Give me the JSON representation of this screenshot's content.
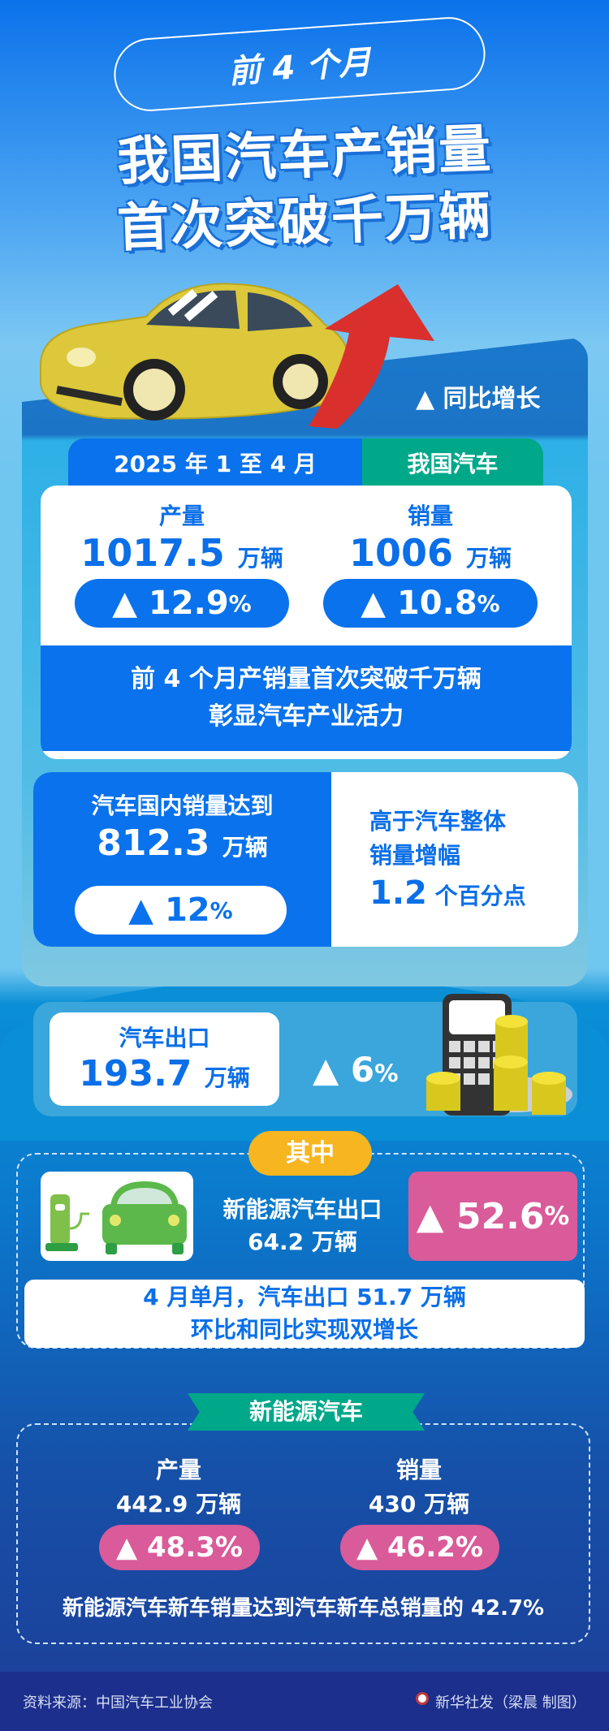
{
  "header": {
    "tag": "前 4 个月",
    "title_line1": "我国汽车产销量",
    "title_line2": "首次突破千万辆"
  },
  "legend": {
    "text": "▲ 同比增长"
  },
  "overall": {
    "period": "2025 年 1 至 4 月",
    "scope": "我国汽车",
    "production": {
      "label": "产量",
      "value": "1017.5",
      "unit": "万辆",
      "growth": "▲ 12.9",
      "pct": "%"
    },
    "sales": {
      "label": "销量",
      "value": "1006",
      "unit": "万辆",
      "growth": "▲ 10.8",
      "pct": "%"
    },
    "note_line1": "前 4 个月产销量首次突破千万辆",
    "note_line2": "彰显汽车产业活力"
  },
  "domestic": {
    "label": "汽车国内销量达到",
    "value": "812.3",
    "unit": "万辆",
    "growth": "▲ 12",
    "pct": "%",
    "compare_line1": "高于汽车整体",
    "compare_line2": "销量增幅",
    "compare_value": "1.2",
    "compare_unit": "个百分点"
  },
  "export": {
    "label": "汽车出口",
    "value": "193.7",
    "unit": "万辆",
    "growth": "▲ 6",
    "pct": "%",
    "among_label": "其中",
    "nev_label": "新能源汽车出口",
    "nev_value": "64.2 万辆",
    "nev_growth": "▲ 52.6",
    "nev_pct": "%",
    "april_line1": "4 月单月，汽车出口 51.7 万辆",
    "april_line2": "环比和同比实现双增长"
  },
  "nev": {
    "ribbon": "新能源汽车",
    "production": {
      "label": "产量",
      "value": "442.9 万辆",
      "growth": "▲ 48.3%"
    },
    "sales": {
      "label": "销量",
      "value": "430 万辆",
      "growth": "▲ 46.2%"
    },
    "share_note": "新能源汽车新车销量达到汽车新车总销量的 42.7%"
  },
  "footer": {
    "source": "资料来源：中国汽车工业协会",
    "credit": "新华社发（梁晨 制图）"
  },
  "colors": {
    "blue": "#0a72ec",
    "green": "#00a88a",
    "pink": "#d95b99",
    "orange": "#f7b51f",
    "navy": "#1c2f8c"
  }
}
